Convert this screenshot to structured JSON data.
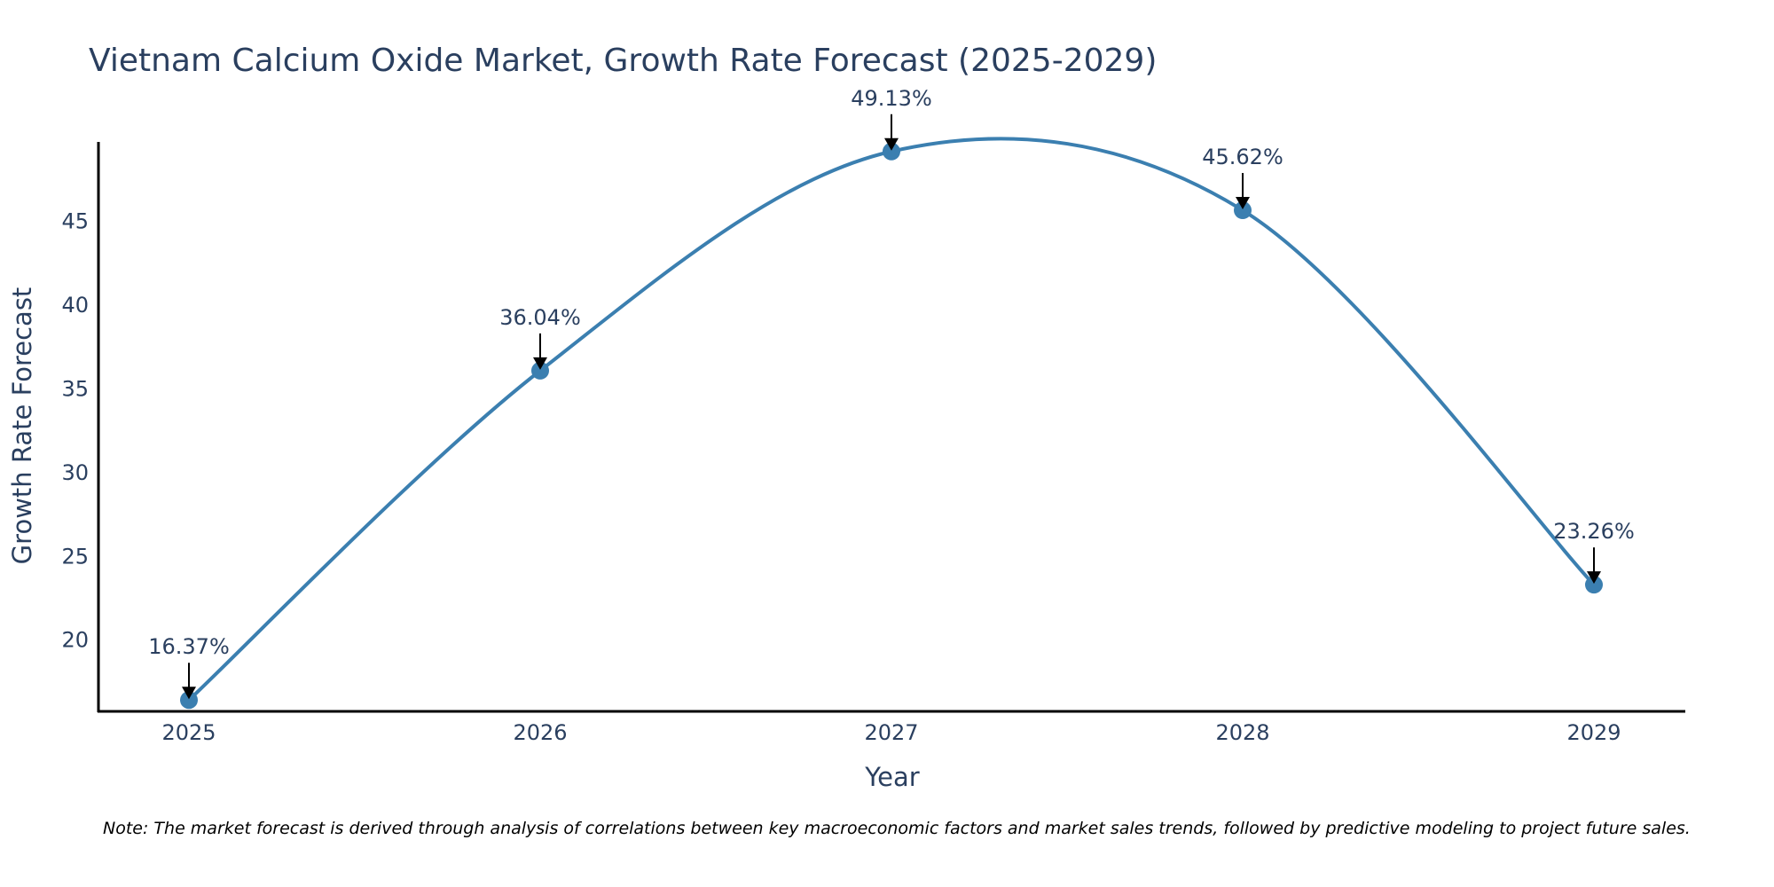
{
  "chart_data": {
    "type": "line",
    "title": "Vietnam Calcium Oxide Market, Growth Rate Forecast (2025-2029)",
    "xlabel": "Year",
    "ylabel": "Growth Rate Forecast",
    "categories": [
      "2025",
      "2026",
      "2027",
      "2028",
      "2029"
    ],
    "series": [
      {
        "name": "Growth Rate Forecast",
        "values": [
          16.37,
          36.04,
          49.13,
          45.62,
          23.26
        ]
      }
    ],
    "data_labels": [
      "16.37%",
      "36.04%",
      "49.13%",
      "45.62%",
      "23.26%"
    ],
    "yticks": [
      20,
      25,
      30,
      35,
      40,
      45
    ],
    "ylim": [
      15.8,
      49.7
    ],
    "grid": false,
    "line_shape": "spline",
    "note": "Note: The market forecast is derived through analysis of correlations between key macroeconomic factors and market sales trends, followed by predictive modeling to project future sales."
  },
  "colors": {
    "line": "#3b7fb0",
    "text": "#2a3f5f",
    "axis": "#000000",
    "arrow": "#000000"
  }
}
